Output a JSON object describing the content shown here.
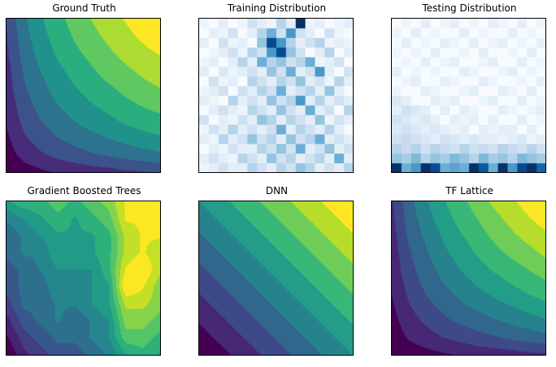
{
  "figure": {
    "background": "#ffffff",
    "spine_color": "#000000",
    "title_color": "#000000"
  },
  "colormaps": {
    "viridis": [
      [
        0.0,
        "#440154"
      ],
      [
        0.1,
        "#482475"
      ],
      [
        0.2,
        "#414487"
      ],
      [
        0.3,
        "#355f8d"
      ],
      [
        0.4,
        "#2a788e"
      ],
      [
        0.5,
        "#21918c"
      ],
      [
        0.6,
        "#22a884"
      ],
      [
        0.7,
        "#44bf70"
      ],
      [
        0.8,
        "#7ad151"
      ],
      [
        0.9,
        "#bddf26"
      ],
      [
        1.0,
        "#fde725"
      ]
    ],
    "blues": [
      [
        0.0,
        "#f7fbff"
      ],
      [
        0.125,
        "#deebf7"
      ],
      [
        0.25,
        "#c6dbef"
      ],
      [
        0.375,
        "#9ecae1"
      ],
      [
        0.5,
        "#6baed6"
      ],
      [
        0.625,
        "#4292c6"
      ],
      [
        0.75,
        "#2171b5"
      ],
      [
        0.875,
        "#08519c"
      ],
      [
        1.0,
        "#08306b"
      ]
    ]
  },
  "chart_data": [
    {
      "type": "heatmap",
      "title": "Ground Truth",
      "colormap": "viridis",
      "render": "contour",
      "levels": 9,
      "x_range": [
        0,
        1
      ],
      "y_range": [
        0,
        1
      ],
      "grid": [
        [
          0.3,
          0.46,
          0.56,
          0.64,
          0.71,
          0.77,
          0.82,
          0.87,
          0.92,
          0.96
        ],
        [
          0.28,
          0.44,
          0.54,
          0.62,
          0.68,
          0.74,
          0.79,
          0.84,
          0.88,
          0.92
        ],
        [
          0.27,
          0.42,
          0.51,
          0.59,
          0.65,
          0.7,
          0.75,
          0.8,
          0.84,
          0.87
        ],
        [
          0.25,
          0.39,
          0.48,
          0.55,
          0.61,
          0.66,
          0.71,
          0.75,
          0.79,
          0.82
        ],
        [
          0.24,
          0.37,
          0.45,
          0.52,
          0.57,
          0.62,
          0.66,
          0.7,
          0.74,
          0.77
        ],
        [
          0.22,
          0.34,
          0.42,
          0.48,
          0.53,
          0.57,
          0.61,
          0.65,
          0.68,
          0.71
        ],
        [
          0.2,
          0.31,
          0.38,
          0.43,
          0.48,
          0.52,
          0.55,
          0.59,
          0.62,
          0.64
        ],
        [
          0.17,
          0.27,
          0.33,
          0.38,
          0.42,
          0.45,
          0.48,
          0.51,
          0.54,
          0.56
        ],
        [
          0.14,
          0.22,
          0.27,
          0.31,
          0.34,
          0.37,
          0.39,
          0.42,
          0.44,
          0.46
        ],
        [
          0.09,
          0.14,
          0.17,
          0.2,
          0.22,
          0.24,
          0.25,
          0.27,
          0.28,
          0.3
        ]
      ]
    },
    {
      "type": "heatmap",
      "title": "Training Distribution",
      "colormap": "blues",
      "render": "cells",
      "grid": [
        [
          0.05,
          0.0,
          0.1,
          0.0,
          0.05,
          0.2,
          0.1,
          0.05,
          0.3,
          0.1,
          1.0,
          0.05,
          0.1,
          0.0,
          0.05,
          0.1
        ],
        [
          0.0,
          0.1,
          0.05,
          0.2,
          0.0,
          0.1,
          0.3,
          0.5,
          0.2,
          0.6,
          0.2,
          0.1,
          0.0,
          0.2,
          0.05,
          0.0
        ],
        [
          0.1,
          0.0,
          0.2,
          0.05,
          0.1,
          0.0,
          0.4,
          0.9,
          0.6,
          0.3,
          0.1,
          0.2,
          0.3,
          0.05,
          0.1,
          0.05
        ],
        [
          0.0,
          0.05,
          0.1,
          0.2,
          0.05,
          0.3,
          0.2,
          0.6,
          0.9,
          0.4,
          0.2,
          0.0,
          0.1,
          0.3,
          0.0,
          0.1
        ],
        [
          0.05,
          0.1,
          0.0,
          0.1,
          0.3,
          0.1,
          0.5,
          0.3,
          0.4,
          0.2,
          0.3,
          0.5,
          0.05,
          0.1,
          0.2,
          0.0
        ],
        [
          0.1,
          0.0,
          0.15,
          0.05,
          0.1,
          0.2,
          0.1,
          0.4,
          0.2,
          0.5,
          0.1,
          0.2,
          0.6,
          0.1,
          0.0,
          0.2
        ],
        [
          0.0,
          0.2,
          0.05,
          0.1,
          0.0,
          0.3,
          0.2,
          0.1,
          0.3,
          0.2,
          0.4,
          0.1,
          0.2,
          0.05,
          0.3,
          0.1
        ],
        [
          0.05,
          0.1,
          0.2,
          0.0,
          0.2,
          0.1,
          0.3,
          0.2,
          0.5,
          0.1,
          0.2,
          0.3,
          0.1,
          0.4,
          0.1,
          0.0
        ],
        [
          0.1,
          0.05,
          0.0,
          0.3,
          0.1,
          0.2,
          0.1,
          0.4,
          0.2,
          0.3,
          0.6,
          0.1,
          0.3,
          0.1,
          0.2,
          0.1
        ],
        [
          0.0,
          0.1,
          0.2,
          0.1,
          0.05,
          0.3,
          0.2,
          0.1,
          0.4,
          0.2,
          0.1,
          0.5,
          0.1,
          0.2,
          0.0,
          0.3
        ],
        [
          0.2,
          0.0,
          0.1,
          0.05,
          0.2,
          0.1,
          0.4,
          0.3,
          0.1,
          0.3,
          0.2,
          0.1,
          0.4,
          0.05,
          0.2,
          0.1
        ],
        [
          0.05,
          0.2,
          0.1,
          0.3,
          0.1,
          0.2,
          0.1,
          0.2,
          0.5,
          0.1,
          0.3,
          0.2,
          0.1,
          0.3,
          0.1,
          0.0
        ],
        [
          0.1,
          0.05,
          0.3,
          0.1,
          0.2,
          0.4,
          0.2,
          0.3,
          0.1,
          0.4,
          0.2,
          0.3,
          0.5,
          0.1,
          0.2,
          0.1
        ],
        [
          0.0,
          0.1,
          0.05,
          0.2,
          0.1,
          0.1,
          0.3,
          0.2,
          0.4,
          0.2,
          0.5,
          0.1,
          0.2,
          0.4,
          0.1,
          0.2
        ],
        [
          0.1,
          0.2,
          0.1,
          0.05,
          0.3,
          0.2,
          0.1,
          0.4,
          0.2,
          0.3,
          0.1,
          0.2,
          0.3,
          0.1,
          0.5,
          0.1
        ],
        [
          0.05,
          0.1,
          0.2,
          0.1,
          0.1,
          0.3,
          0.2,
          0.1,
          0.3,
          0.2,
          0.4,
          0.3,
          0.1,
          0.2,
          0.1,
          0.3
        ]
      ]
    },
    {
      "type": "heatmap",
      "title": "Testing Distribution",
      "colormap": "blues",
      "render": "cells",
      "grid": [
        [
          0.0,
          0.05,
          0.0,
          0.1,
          0.0,
          0.05,
          0.1,
          0.0,
          0.05,
          0.0,
          0.1,
          0.05,
          0.0,
          0.1,
          0.0,
          0.05
        ],
        [
          0.05,
          0.0,
          0.1,
          0.0,
          0.05,
          0.0,
          0.0,
          0.1,
          0.0,
          0.05,
          0.0,
          0.0,
          0.1,
          0.0,
          0.05,
          0.0
        ],
        [
          0.0,
          0.1,
          0.0,
          0.05,
          0.0,
          0.1,
          0.05,
          0.0,
          0.1,
          0.0,
          0.05,
          0.1,
          0.0,
          0.05,
          0.0,
          0.1
        ],
        [
          0.05,
          0.0,
          0.05,
          0.0,
          0.1,
          0.0,
          0.0,
          0.05,
          0.0,
          0.1,
          0.0,
          0.0,
          0.05,
          0.0,
          0.1,
          0.0
        ],
        [
          0.0,
          0.05,
          0.0,
          0.1,
          0.0,
          0.05,
          0.1,
          0.0,
          0.0,
          0.05,
          0.1,
          0.0,
          0.0,
          0.1,
          0.0,
          0.05
        ],
        [
          0.1,
          0.0,
          0.05,
          0.0,
          0.05,
          0.0,
          0.0,
          0.1,
          0.05,
          0.0,
          0.0,
          0.05,
          0.1,
          0.0,
          0.05,
          0.0
        ],
        [
          0.0,
          0.05,
          0.1,
          0.0,
          0.0,
          0.1,
          0.05,
          0.0,
          0.0,
          0.1,
          0.05,
          0.0,
          0.0,
          0.05,
          0.0,
          0.1
        ],
        [
          0.05,
          0.0,
          0.0,
          0.1,
          0.05,
          0.0,
          0.0,
          0.05,
          0.1,
          0.0,
          0.0,
          0.1,
          0.05,
          0.0,
          0.1,
          0.0
        ],
        [
          0.15,
          0.1,
          0.0,
          0.0,
          0.1,
          0.05,
          0.1,
          0.0,
          0.0,
          0.05,
          0.1,
          0.0,
          0.0,
          0.1,
          0.0,
          0.05
        ],
        [
          0.1,
          0.2,
          0.15,
          0.1,
          0.0,
          0.1,
          0.0,
          0.1,
          0.05,
          0.0,
          0.0,
          0.1,
          0.05,
          0.0,
          0.05,
          0.1
        ],
        [
          0.2,
          0.15,
          0.1,
          0.15,
          0.1,
          0.0,
          0.1,
          0.05,
          0.1,
          0.0,
          0.1,
          0.0,
          0.0,
          0.1,
          0.0,
          0.05
        ],
        [
          0.15,
          0.2,
          0.15,
          0.1,
          0.15,
          0.1,
          0.05,
          0.1,
          0.0,
          0.1,
          0.05,
          0.1,
          0.1,
          0.0,
          0.1,
          0.0
        ],
        [
          0.2,
          0.25,
          0.2,
          0.15,
          0.1,
          0.2,
          0.15,
          0.1,
          0.15,
          0.1,
          0.1,
          0.05,
          0.1,
          0.15,
          0.05,
          0.1
        ],
        [
          0.3,
          0.25,
          0.3,
          0.2,
          0.3,
          0.25,
          0.2,
          0.3,
          0.2,
          0.25,
          0.2,
          0.3,
          0.25,
          0.2,
          0.3,
          0.2
        ],
        [
          0.4,
          0.35,
          0.45,
          0.3,
          0.4,
          0.35,
          0.45,
          0.4,
          0.3,
          0.45,
          0.35,
          0.4,
          0.3,
          0.45,
          0.4,
          0.35
        ],
        [
          1.0,
          0.5,
          0.6,
          1.0,
          0.9,
          0.5,
          0.55,
          0.5,
          1.0,
          0.85,
          0.5,
          1.0,
          0.6,
          0.9,
          1.0,
          0.8
        ]
      ]
    },
    {
      "type": "heatmap",
      "title": "Gradient Boosted Trees",
      "colormap": "viridis",
      "render": "contour",
      "levels": 12,
      "grid": [
        [
          0.55,
          0.6,
          0.6,
          0.65,
          0.6,
          0.65,
          0.7,
          0.8,
          0.8,
          0.8
        ],
        [
          0.45,
          0.5,
          0.55,
          0.6,
          0.55,
          0.6,
          0.65,
          0.8,
          0.8,
          0.8
        ],
        [
          0.4,
          0.45,
          0.5,
          0.55,
          0.55,
          0.55,
          0.6,
          0.75,
          0.8,
          0.8
        ],
        [
          0.4,
          0.45,
          0.45,
          0.55,
          0.5,
          0.55,
          0.6,
          0.75,
          0.8,
          0.75
        ],
        [
          0.35,
          0.4,
          0.45,
          0.5,
          0.5,
          0.5,
          0.6,
          0.8,
          0.85,
          0.75
        ],
        [
          0.35,
          0.4,
          0.4,
          0.5,
          0.45,
          0.5,
          0.55,
          0.85,
          0.8,
          0.7
        ],
        [
          0.3,
          0.4,
          0.4,
          0.45,
          0.45,
          0.5,
          0.55,
          0.75,
          0.75,
          0.7
        ],
        [
          0.25,
          0.35,
          0.4,
          0.45,
          0.4,
          0.45,
          0.5,
          0.7,
          0.7,
          0.65
        ],
        [
          0.2,
          0.3,
          0.35,
          0.4,
          0.4,
          0.45,
          0.5,
          0.65,
          0.65,
          0.6
        ],
        [
          0.15,
          0.25,
          0.3,
          0.35,
          0.35,
          0.4,
          0.45,
          0.55,
          0.6,
          0.55
        ]
      ]
    },
    {
      "type": "heatmap",
      "title": "DNN",
      "colormap": "viridis",
      "render": "contour",
      "levels": 10,
      "grid": [
        [
          0.5,
          0.55,
          0.6,
          0.65,
          0.7,
          0.75,
          0.8,
          0.85,
          0.9,
          0.95
        ],
        [
          0.45,
          0.5,
          0.55,
          0.6,
          0.65,
          0.7,
          0.75,
          0.8,
          0.85,
          0.9
        ],
        [
          0.4,
          0.45,
          0.5,
          0.55,
          0.6,
          0.65,
          0.7,
          0.75,
          0.8,
          0.85
        ],
        [
          0.35,
          0.4,
          0.45,
          0.5,
          0.55,
          0.6,
          0.65,
          0.7,
          0.75,
          0.8
        ],
        [
          0.3,
          0.35,
          0.4,
          0.45,
          0.5,
          0.55,
          0.6,
          0.65,
          0.7,
          0.75
        ],
        [
          0.25,
          0.3,
          0.35,
          0.4,
          0.45,
          0.5,
          0.55,
          0.6,
          0.65,
          0.7
        ],
        [
          0.2,
          0.25,
          0.3,
          0.35,
          0.4,
          0.45,
          0.5,
          0.55,
          0.6,
          0.65
        ],
        [
          0.15,
          0.2,
          0.25,
          0.3,
          0.35,
          0.4,
          0.45,
          0.5,
          0.55,
          0.6
        ],
        [
          0.1,
          0.15,
          0.2,
          0.25,
          0.3,
          0.35,
          0.4,
          0.45,
          0.5,
          0.55
        ],
        [
          0.05,
          0.1,
          0.15,
          0.2,
          0.25,
          0.3,
          0.35,
          0.4,
          0.45,
          0.5
        ]
      ]
    },
    {
      "type": "heatmap",
      "title": "TF Lattice",
      "colormap": "viridis",
      "render": "contour",
      "levels": 10,
      "grid": [
        [
          0.22,
          0.38,
          0.49,
          0.58,
          0.65,
          0.72,
          0.79,
          0.84,
          0.9,
          0.95
        ],
        [
          0.21,
          0.36,
          0.46,
          0.55,
          0.62,
          0.68,
          0.74,
          0.8,
          0.85,
          0.9
        ],
        [
          0.19,
          0.34,
          0.43,
          0.51,
          0.58,
          0.64,
          0.7,
          0.75,
          0.8,
          0.84
        ],
        [
          0.18,
          0.31,
          0.4,
          0.48,
          0.54,
          0.6,
          0.65,
          0.7,
          0.74,
          0.79
        ],
        [
          0.17,
          0.29,
          0.37,
          0.44,
          0.5,
          0.55,
          0.6,
          0.64,
          0.68,
          0.72
        ],
        [
          0.15,
          0.26,
          0.34,
          0.4,
          0.45,
          0.5,
          0.54,
          0.58,
          0.62,
          0.65
        ],
        [
          0.13,
          0.23,
          0.3,
          0.35,
          0.4,
          0.44,
          0.48,
          0.51,
          0.55,
          0.58
        ],
        [
          0.11,
          0.19,
          0.25,
          0.3,
          0.34,
          0.37,
          0.4,
          0.43,
          0.46,
          0.49
        ],
        [
          0.09,
          0.15,
          0.19,
          0.23,
          0.26,
          0.29,
          0.31,
          0.34,
          0.36,
          0.38
        ],
        [
          0.05,
          0.09,
          0.11,
          0.13,
          0.15,
          0.17,
          0.18,
          0.19,
          0.21,
          0.22
        ]
      ]
    }
  ]
}
